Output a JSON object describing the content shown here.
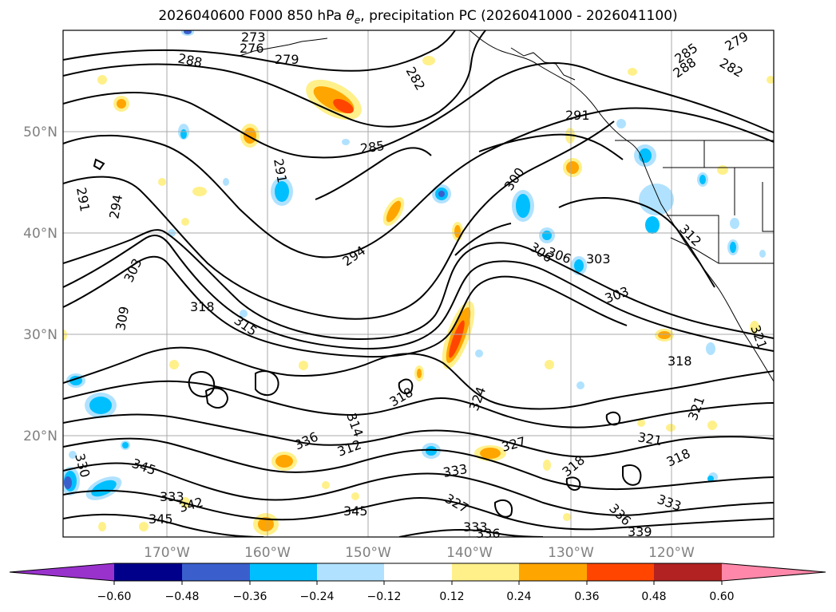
{
  "title_prefix": "2026040600 F000 850 hPa ",
  "title_theta": "θ",
  "title_sub": "e",
  "title_suffix": ", precipitation PC (2026041000 - 2026041100)",
  "lat_labels": [
    "50°N",
    "40°N",
    "30°N",
    "20°N"
  ],
  "lon_labels": [
    "170°W",
    "160°W",
    "150°W",
    "140°W",
    "130°W",
    "120°W"
  ],
  "contour_labels": [
    "273",
    "276",
    "279",
    "288",
    "282",
    "285",
    "288",
    "282",
    "279",
    "291",
    "285",
    "291",
    "294",
    "291",
    "300",
    "306",
    "306",
    "303",
    "303",
    "312",
    "294",
    "303",
    "309",
    "318",
    "315",
    "318",
    "321",
    "314",
    "312",
    "318",
    "324",
    "327",
    "321",
    "321",
    "318",
    "318",
    "333",
    "336",
    "330",
    "345",
    "333",
    "342",
    "327",
    "336",
    "333",
    "345",
    "345",
    "333",
    "336",
    "339"
  ],
  "colorbar": {
    "ticks": [
      "−0.60",
      "−0.48",
      "−0.36",
      "−0.24",
      "−0.12",
      "0.12",
      "0.24",
      "0.36",
      "0.48",
      "0.60"
    ],
    "colors": [
      "#9932cc",
      "#00008b",
      "#3a5fcd",
      "#00bfff",
      "#b0e2ff",
      "#ffffff",
      "#fff08a",
      "#ffa500",
      "#ff4500",
      "#b22222",
      "#ff88aa"
    ]
  },
  "legend_colors": {
    "light_blue": "#b0e2ff",
    "blue": "#00bfff",
    "yellow": "#fff08a",
    "orange": "#ffa500",
    "red": "#ff4500"
  }
}
